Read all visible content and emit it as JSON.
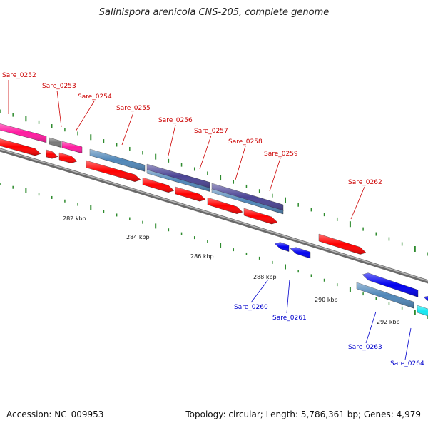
{
  "title": "Salinispora arenicola CNS-205, complete genome",
  "footer": {
    "accession": "Accession: NC_009953",
    "summary": "Topology: circular; Length: 5,786,361 bp; Genes: 4,979"
  },
  "colors": {
    "backbone": "#8a8a8a",
    "tick": "#2e8b2e",
    "label_forward": "#cc0000",
    "label_reverse": "#0000cc",
    "cds_red": "#ff0000",
    "cds_pink": "#ff1aa0",
    "cds_gray": "#777777",
    "cds_steel": "#4f86b8",
    "cds_slate": "#4b4494",
    "cds_blue": "#0000ee",
    "cds_cyan": "#14e8f2"
  },
  "scale_labels": [
    "282 kbp",
    "284 kbp",
    "286 kbp",
    "288 kbp",
    "290 kbp",
    "292 kbp"
  ],
  "gene_labels_forward": [
    "Sare_0252",
    "Sare_0253",
    "Sare_0254",
    "Sare_0255",
    "Sare_0256",
    "Sare_0257",
    "Sare_0258",
    "Sare_0259",
    "Sare_0262"
  ],
  "gene_labels_reverse": [
    "Sare_0260",
    "Sare_0261",
    "Sare_0263",
    "Sare_0264"
  ]
}
